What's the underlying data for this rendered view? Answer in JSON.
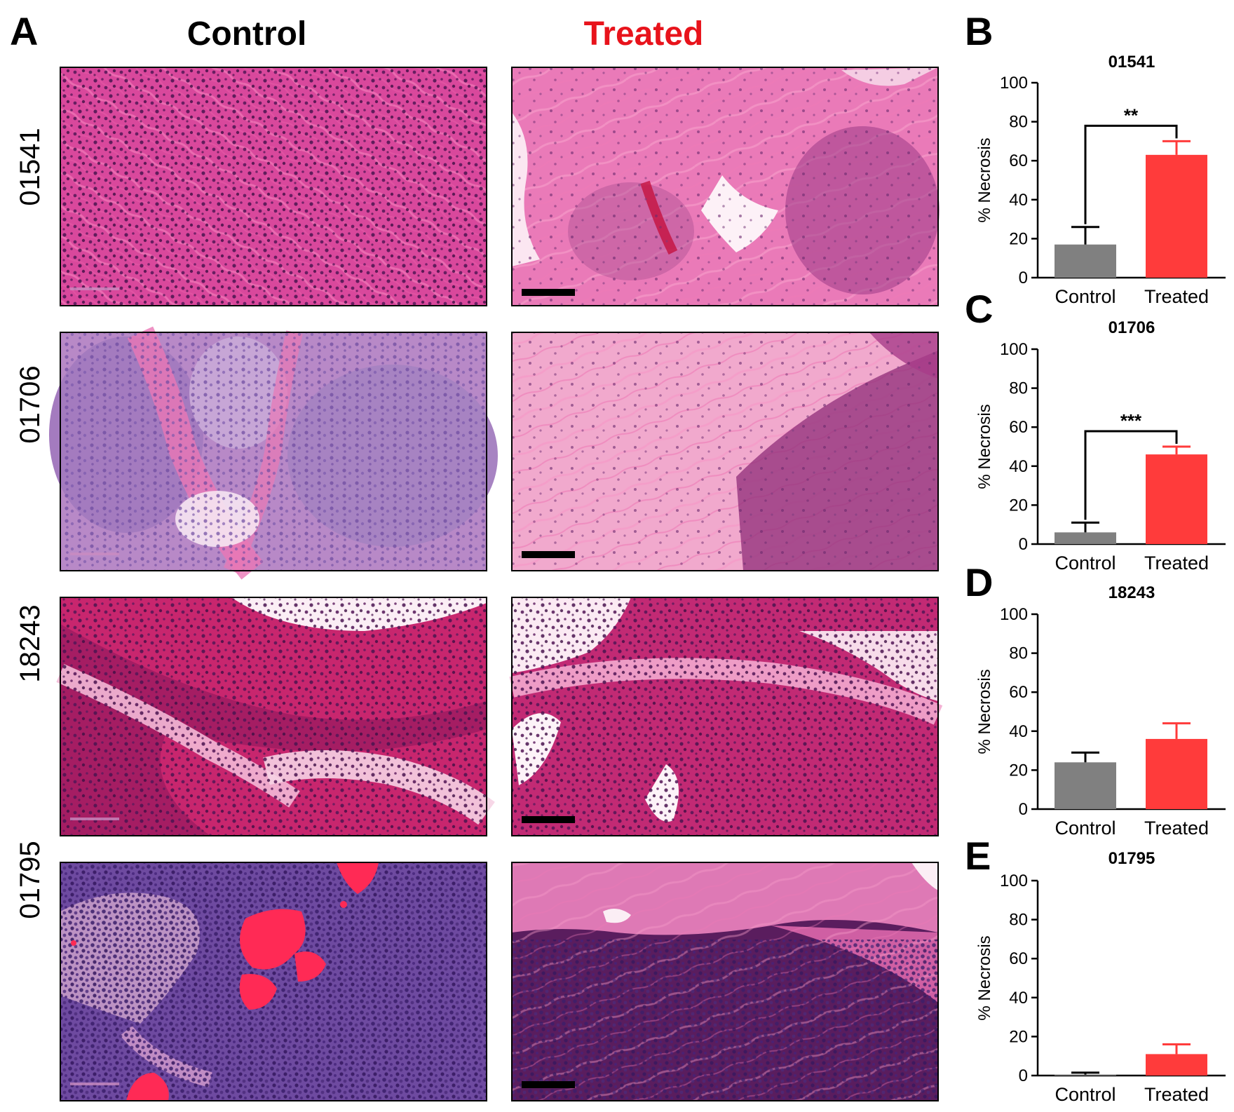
{
  "panel_a": {
    "letter": "A",
    "column_titles": [
      {
        "text": "Control",
        "color": "#000000"
      },
      {
        "text": "Treated",
        "color": "#e8131b"
      }
    ],
    "row_labels": [
      "01541",
      "01706",
      "18243",
      "01795"
    ],
    "images": [
      {
        "sample": "01541",
        "group": "Control",
        "stain": "h-and-e",
        "tone": "pink-dense-stroma"
      },
      {
        "sample": "01541",
        "group": "Treated",
        "stain": "h-and-e",
        "tone": "pale-necrotic"
      },
      {
        "sample": "01706",
        "group": "Control",
        "stain": "h-and-e",
        "tone": "lavender-nests"
      },
      {
        "sample": "01706",
        "group": "Treated",
        "stain": "h-and-e",
        "tone": "pale-pink-necrotic"
      },
      {
        "sample": "18243",
        "group": "Control",
        "stain": "h-and-e",
        "tone": "magenta-bands"
      },
      {
        "sample": "18243",
        "group": "Treated",
        "stain": "h-and-e",
        "tone": "magenta-bands-gaps"
      },
      {
        "sample": "01795",
        "group": "Control",
        "stain": "h-and-e",
        "tone": "purple-hemorrhage"
      },
      {
        "sample": "01795",
        "group": "Treated",
        "stain": "h-and-e",
        "tone": "dark-purple"
      }
    ]
  },
  "colors": {
    "control_bar": "#808080",
    "treated_bar": "#ff3b3b",
    "treated_title": "#e8131b",
    "axis": "#000000"
  },
  "chart_data": [
    {
      "letter": "B",
      "type": "bar",
      "title": "01541",
      "ylabel": "% Necrosis",
      "ylim": [
        0,
        100
      ],
      "yticks": [
        "0",
        "20",
        "40",
        "60",
        "80",
        "100"
      ],
      "categories": [
        "Control",
        "Treated"
      ],
      "values": [
        17,
        63
      ],
      "errors": [
        9,
        7
      ],
      "significance": "**"
    },
    {
      "letter": "C",
      "type": "bar",
      "title": "01706",
      "ylabel": "% Necrosis",
      "ylim": [
        0,
        100
      ],
      "yticks": [
        "0",
        "20",
        "40",
        "60",
        "80",
        "100"
      ],
      "categories": [
        "Control",
        "Treated"
      ],
      "values": [
        6,
        46
      ],
      "errors": [
        5,
        4
      ],
      "significance": "***"
    },
    {
      "letter": "D",
      "type": "bar",
      "title": "18243",
      "ylabel": "% Necrosis",
      "ylim": [
        0,
        100
      ],
      "yticks": [
        "0",
        "20",
        "40",
        "60",
        "80",
        "100"
      ],
      "categories": [
        "Control",
        "Treated"
      ],
      "values": [
        24,
        36
      ],
      "errors": [
        5,
        8
      ],
      "significance": ""
    },
    {
      "letter": "E",
      "type": "bar",
      "title": "01795",
      "ylabel": "% Necrosis",
      "ylim": [
        0,
        100
      ],
      "yticks": [
        "0",
        "20",
        "40",
        "60",
        "80",
        "100"
      ],
      "categories": [
        "Control",
        "Treated"
      ],
      "values": [
        0.5,
        11
      ],
      "errors": [
        1,
        5
      ],
      "significance": ""
    }
  ]
}
